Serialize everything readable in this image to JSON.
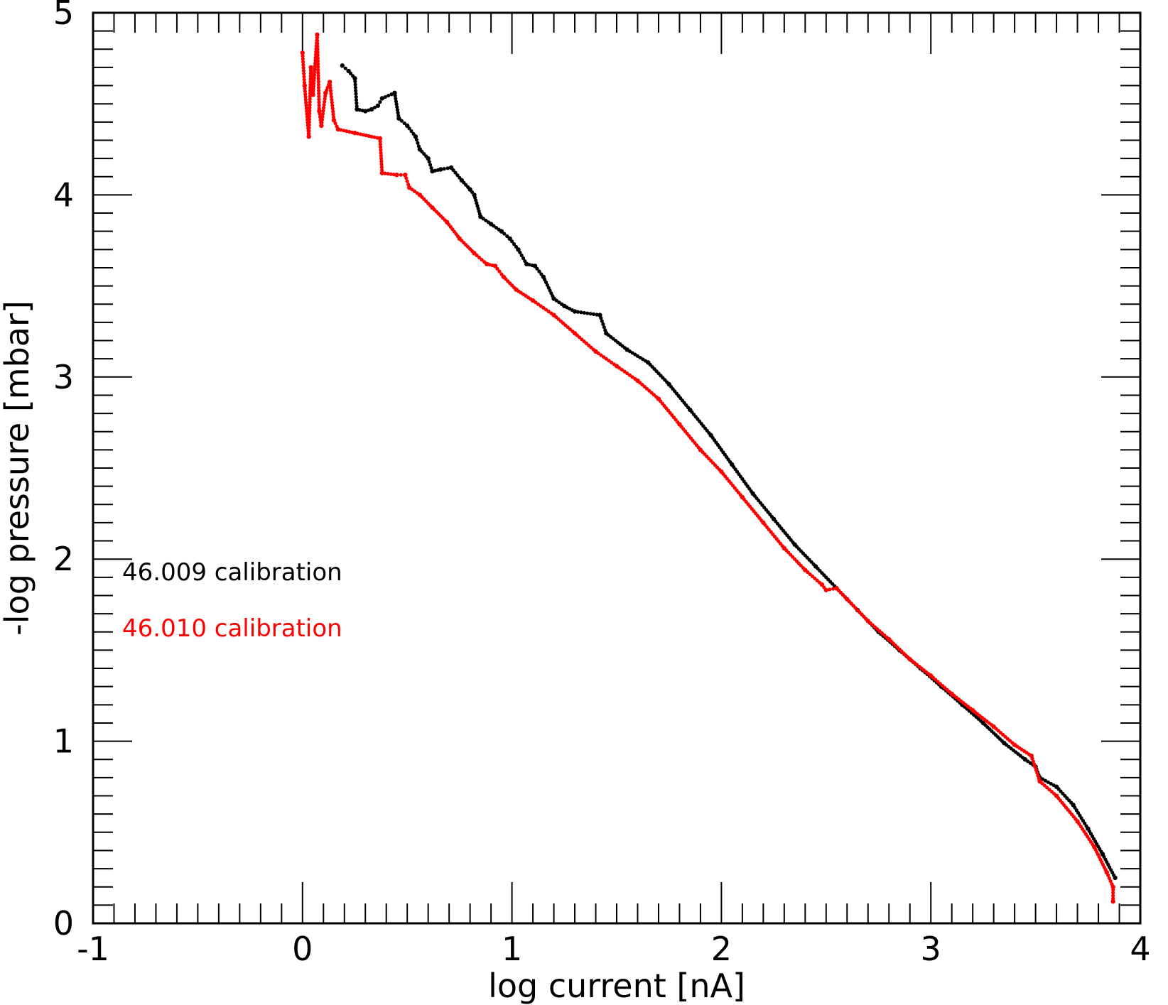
{
  "chart_data": {
    "type": "scatter",
    "xlabel": "log current [nA]",
    "ylabel": "-log pressure [mbar]",
    "xlim": [
      -1,
      4
    ],
    "ylim": [
      0,
      5
    ],
    "x_ticks": [
      "-1",
      "0",
      "1",
      "2",
      "3",
      "4"
    ],
    "y_ticks": [
      "0",
      "1",
      "2",
      "3",
      "4",
      "5"
    ],
    "x_major": [
      -1,
      0,
      1,
      2,
      3,
      4
    ],
    "y_major": [
      0,
      1,
      2,
      3,
      4,
      5
    ],
    "x_minor_step": 0.1,
    "y_minor_step": 0.1,
    "grid": false,
    "legend_placement": "middle-left",
    "series": [
      {
        "name": "46.009 calibration",
        "color": "#000000",
        "points": [
          [
            0.19,
            4.71
          ],
          [
            0.22,
            4.68
          ],
          [
            0.25,
            4.64
          ],
          [
            0.26,
            4.47
          ],
          [
            0.3,
            4.46
          ],
          [
            0.33,
            4.47
          ],
          [
            0.36,
            4.49
          ],
          [
            0.38,
            4.53
          ],
          [
            0.44,
            4.56
          ],
          [
            0.46,
            4.42
          ],
          [
            0.5,
            4.38
          ],
          [
            0.54,
            4.32
          ],
          [
            0.56,
            4.25
          ],
          [
            0.6,
            4.2
          ],
          [
            0.62,
            4.13
          ],
          [
            0.66,
            4.14
          ],
          [
            0.71,
            4.15
          ],
          [
            0.76,
            4.08
          ],
          [
            0.8,
            4.03
          ],
          [
            0.82,
            4.0
          ],
          [
            0.85,
            3.88
          ],
          [
            0.9,
            3.84
          ],
          [
            0.95,
            3.8
          ],
          [
            0.99,
            3.76
          ],
          [
            1.03,
            3.7
          ],
          [
            1.07,
            3.62
          ],
          [
            1.11,
            3.61
          ],
          [
            1.15,
            3.55
          ],
          [
            1.2,
            3.43
          ],
          [
            1.25,
            3.39
          ],
          [
            1.3,
            3.36
          ],
          [
            1.42,
            3.34
          ],
          [
            1.45,
            3.24
          ],
          [
            1.55,
            3.15
          ],
          [
            1.65,
            3.08
          ],
          [
            1.75,
            2.96
          ],
          [
            1.85,
            2.82
          ],
          [
            1.95,
            2.68
          ],
          [
            2.05,
            2.52
          ],
          [
            2.15,
            2.36
          ],
          [
            2.25,
            2.22
          ],
          [
            2.35,
            2.08
          ],
          [
            2.45,
            1.96
          ],
          [
            2.55,
            1.84
          ],
          [
            2.65,
            1.72
          ],
          [
            2.75,
            1.6
          ],
          [
            2.85,
            1.5
          ],
          [
            2.95,
            1.4
          ],
          [
            3.05,
            1.3
          ],
          [
            3.15,
            1.2
          ],
          [
            3.25,
            1.1
          ],
          [
            3.35,
            0.99
          ],
          [
            3.45,
            0.9
          ],
          [
            3.5,
            0.86
          ],
          [
            3.52,
            0.8
          ],
          [
            3.6,
            0.75
          ],
          [
            3.68,
            0.65
          ],
          [
            3.75,
            0.52
          ],
          [
            3.82,
            0.38
          ],
          [
            3.88,
            0.25
          ]
        ]
      },
      {
        "name": "46.010 calibration",
        "color": "#ff0000",
        "points": [
          [
            0.0,
            4.78
          ],
          [
            0.01,
            4.6
          ],
          [
            0.03,
            4.32
          ],
          [
            0.04,
            4.7
          ],
          [
            0.05,
            4.55
          ],
          [
            0.07,
            4.88
          ],
          [
            0.08,
            4.46
          ],
          [
            0.09,
            4.38
          ],
          [
            0.11,
            4.56
          ],
          [
            0.13,
            4.62
          ],
          [
            0.15,
            4.41
          ],
          [
            0.17,
            4.36
          ],
          [
            0.25,
            4.34
          ],
          [
            0.37,
            4.31
          ],
          [
            0.38,
            4.12
          ],
          [
            0.45,
            4.11
          ],
          [
            0.49,
            4.11
          ],
          [
            0.51,
            4.04
          ],
          [
            0.56,
            4.0
          ],
          [
            0.62,
            3.93
          ],
          [
            0.69,
            3.85
          ],
          [
            0.75,
            3.76
          ],
          [
            0.82,
            3.68
          ],
          [
            0.88,
            3.62
          ],
          [
            0.92,
            3.61
          ],
          [
            0.96,
            3.55
          ],
          [
            1.02,
            3.48
          ],
          [
            1.1,
            3.42
          ],
          [
            1.2,
            3.34
          ],
          [
            1.3,
            3.24
          ],
          [
            1.4,
            3.14
          ],
          [
            1.5,
            3.06
          ],
          [
            1.6,
            2.98
          ],
          [
            1.7,
            2.88
          ],
          [
            1.8,
            2.74
          ],
          [
            1.9,
            2.6
          ],
          [
            2.0,
            2.48
          ],
          [
            2.1,
            2.34
          ],
          [
            2.2,
            2.2
          ],
          [
            2.3,
            2.06
          ],
          [
            2.4,
            1.94
          ],
          [
            2.48,
            1.86
          ],
          [
            2.5,
            1.83
          ],
          [
            2.55,
            1.84
          ],
          [
            2.6,
            1.78
          ],
          [
            2.7,
            1.66
          ],
          [
            2.8,
            1.56
          ],
          [
            2.9,
            1.45
          ],
          [
            3.0,
            1.36
          ],
          [
            3.1,
            1.26
          ],
          [
            3.2,
            1.17
          ],
          [
            3.3,
            1.08
          ],
          [
            3.4,
            0.98
          ],
          [
            3.48,
            0.92
          ],
          [
            3.52,
            0.78
          ],
          [
            3.6,
            0.7
          ],
          [
            3.7,
            0.56
          ],
          [
            3.78,
            0.42
          ],
          [
            3.84,
            0.28
          ],
          [
            3.87,
            0.2
          ],
          [
            3.87,
            0.12
          ]
        ]
      }
    ]
  }
}
